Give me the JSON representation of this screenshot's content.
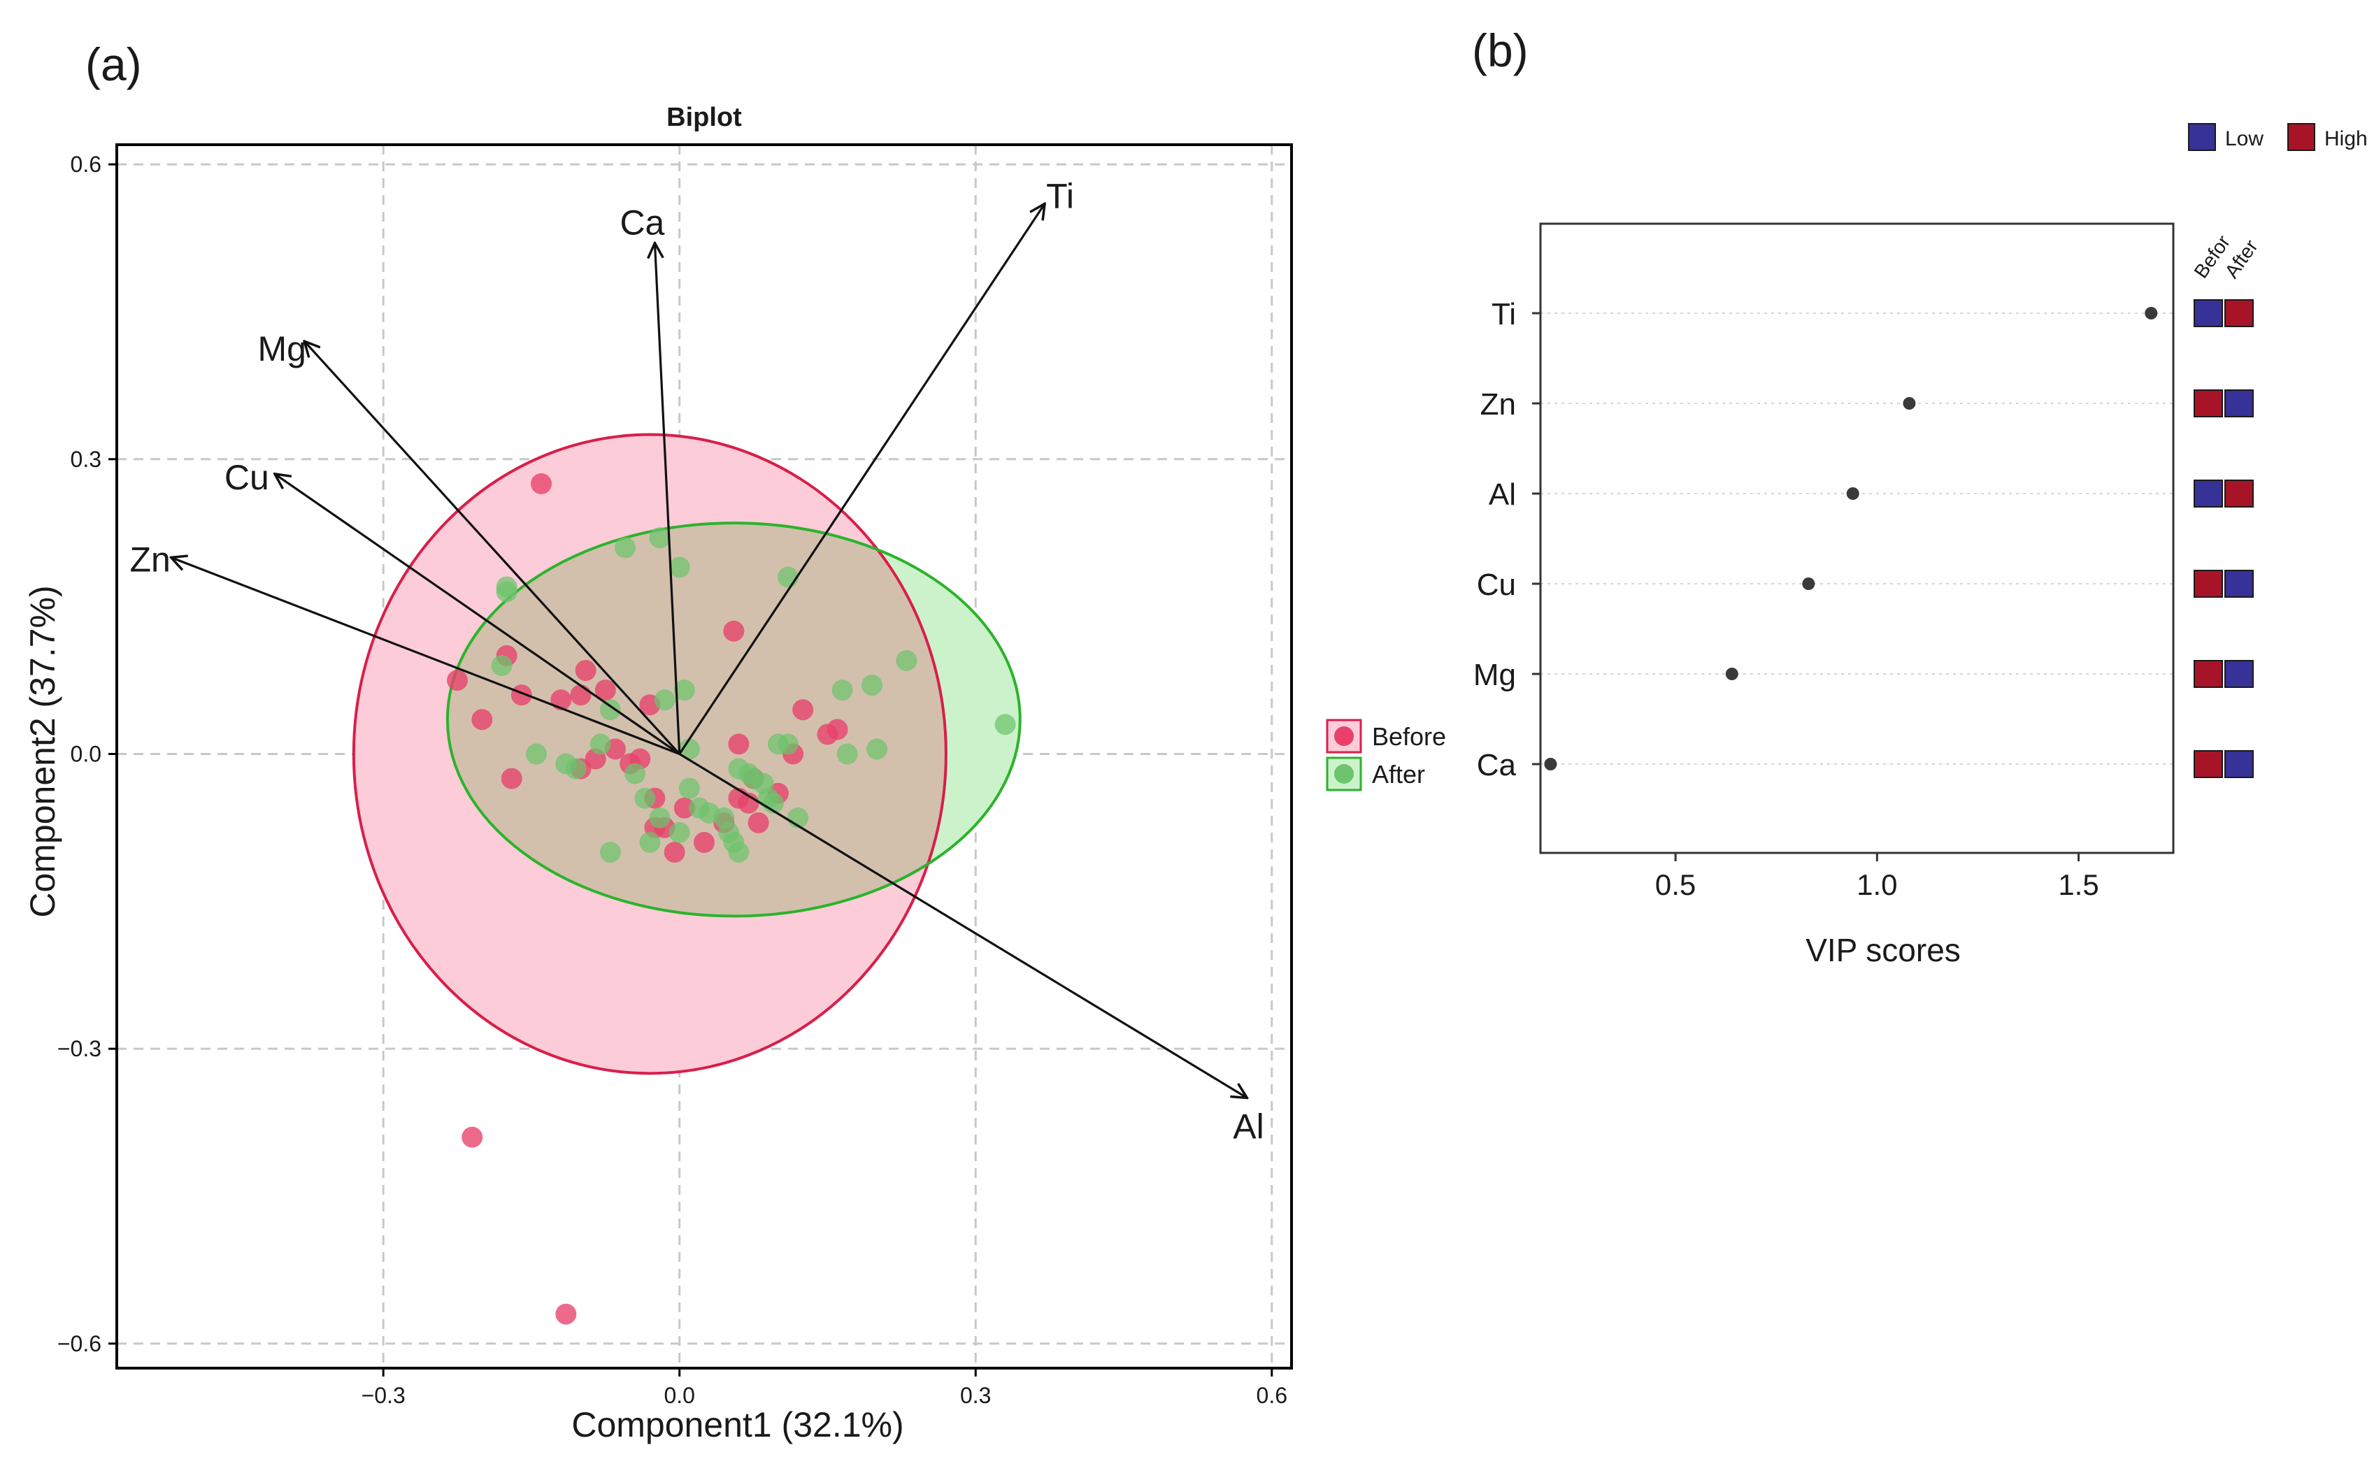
{
  "panel_a_label": "(a)",
  "panel_b_label": "(b)",
  "colors": {
    "before_point": "#e8406a",
    "before_ellipse_fill": "#fcccd8",
    "before_ellipse_stroke": "#d81f4a",
    "after_point": "#6cc46c",
    "after_ellipse_fill": "#ccf2cc",
    "after_ellipse_stroke": "#2cb32c",
    "overlap_fill": "#d2c0ad",
    "low": "#373297",
    "high": "#a81427",
    "vip_point": "#3a3a3a"
  },
  "chart_data": [
    {
      "type": "scatter",
      "subtype": "biplot",
      "title": "Biplot",
      "xlabel": "Component1 (32.1%)",
      "ylabel": "Component2 (37.7%)",
      "xlim": [
        -0.57,
        0.62
      ],
      "ylim": [
        -0.625,
        0.62
      ],
      "x_ticks": [
        -0.3,
        0.0,
        0.3,
        0.6
      ],
      "y_ticks": [
        0.6,
        0.3,
        0.0,
        -0.3,
        -0.6
      ],
      "x_tick_labels": [
        "−0.3",
        "0.0",
        "0.3",
        "0.6"
      ],
      "y_tick_labels": [
        "0.6",
        "0.3",
        "0.0",
        "−0.3",
        "−0.6"
      ],
      "grid": true,
      "legend_position": "right",
      "legend": [
        "Before",
        "After"
      ],
      "loadings": [
        {
          "name": "Ti",
          "x": 0.37,
          "y": 0.56
        },
        {
          "name": "Ca",
          "x": -0.025,
          "y": 0.52
        },
        {
          "name": "Mg",
          "x": -0.38,
          "y": 0.42
        },
        {
          "name": "Cu",
          "x": -0.41,
          "y": 0.285
        },
        {
          "name": "Zn",
          "x": -0.515,
          "y": 0.2
        },
        {
          "name": "Al",
          "x": 0.575,
          "y": -0.35
        }
      ],
      "ellipses": [
        {
          "series": "Before",
          "center": [
            -0.03,
            0.0
          ],
          "rx": 0.3,
          "ry": 0.325
        },
        {
          "series": "After",
          "center": [
            0.055,
            0.035
          ],
          "rx": 0.29,
          "ry": 0.2
        }
      ],
      "series": [
        {
          "name": "Before",
          "points": [
            [
              -0.14,
              0.275
            ],
            [
              -0.21,
              -0.39
            ],
            [
              -0.115,
              -0.57
            ],
            [
              -0.225,
              0.075
            ],
            [
              -0.2,
              0.035
            ],
            [
              -0.175,
              0.1
            ],
            [
              -0.16,
              0.06
            ],
            [
              -0.17,
              -0.025
            ],
            [
              -0.12,
              0.055
            ],
            [
              -0.1,
              0.06
            ],
            [
              -0.095,
              0.085
            ],
            [
              -0.075,
              0.065
            ],
            [
              -0.1,
              -0.015
            ],
            [
              -0.085,
              -0.005
            ],
            [
              -0.065,
              0.005
            ],
            [
              -0.05,
              -0.01
            ],
            [
              -0.04,
              -0.005
            ],
            [
              -0.03,
              0.05
            ],
            [
              -0.025,
              -0.045
            ],
            [
              -0.025,
              -0.075
            ],
            [
              -0.015,
              -0.075
            ],
            [
              -0.005,
              -0.1
            ],
            [
              0.005,
              -0.055
            ],
            [
              0.025,
              -0.09
            ],
            [
              0.045,
              -0.07
            ],
            [
              0.06,
              -0.045
            ],
            [
              0.06,
              0.01
            ],
            [
              0.055,
              0.125
            ],
            [
              0.07,
              -0.05
            ],
            [
              0.08,
              -0.07
            ],
            [
              0.075,
              -0.025
            ],
            [
              0.1,
              -0.04
            ],
            [
              0.115,
              0.0
            ],
            [
              0.125,
              0.045
            ],
            [
              0.16,
              0.025
            ],
            [
              0.15,
              0.02
            ]
          ]
        },
        {
          "name": "After",
          "points": [
            [
              -0.175,
              0.165
            ],
            [
              -0.175,
              0.17
            ],
            [
              -0.18,
              0.09
            ],
            [
              -0.055,
              0.21
            ],
            [
              -0.02,
              0.22
            ],
            [
              0.0,
              0.19
            ],
            [
              0.005,
              0.065
            ],
            [
              -0.015,
              0.055
            ],
            [
              -0.07,
              0.045
            ],
            [
              -0.145,
              0.0
            ],
            [
              -0.115,
              -0.01
            ],
            [
              -0.105,
              -0.015
            ],
            [
              -0.08,
              0.01
            ],
            [
              -0.07,
              -0.1
            ],
            [
              -0.045,
              -0.02
            ],
            [
              -0.035,
              -0.045
            ],
            [
              -0.03,
              -0.09
            ],
            [
              -0.02,
              -0.065
            ],
            [
              0.0,
              -0.08
            ],
            [
              0.01,
              0.005
            ],
            [
              0.01,
              -0.035
            ],
            [
              0.02,
              -0.055
            ],
            [
              0.03,
              -0.06
            ],
            [
              0.045,
              -0.065
            ],
            [
              0.05,
              -0.08
            ],
            [
              0.055,
              -0.09
            ],
            [
              0.06,
              -0.015
            ],
            [
              0.06,
              -0.1
            ],
            [
              0.07,
              -0.02
            ],
            [
              0.075,
              -0.025
            ],
            [
              0.085,
              -0.03
            ],
            [
              0.09,
              -0.045
            ],
            [
              0.095,
              -0.05
            ],
            [
              0.1,
              0.01
            ],
            [
              0.11,
              0.18
            ],
            [
              0.11,
              0.01
            ],
            [
              0.12,
              -0.065
            ],
            [
              0.165,
              0.065
            ],
            [
              0.17,
              0.0
            ],
            [
              0.195,
              0.07
            ],
            [
              0.2,
              0.005
            ],
            [
              0.23,
              0.095
            ],
            [
              0.33,
              0.03
            ]
          ]
        }
      ]
    },
    {
      "type": "scatter",
      "subtype": "dotplot",
      "xlabel": "VIP scores",
      "xlim": [
        0.165,
        1.735
      ],
      "x_ticks": [
        0.5,
        1.0,
        1.5
      ],
      "x_tick_labels": [
        "0.5",
        "1.0",
        "1.5"
      ],
      "categories": [
        "Ti",
        "Zn",
        "Al",
        "Cu",
        "Mg",
        "Ca"
      ],
      "values": [
        1.68,
        1.08,
        0.94,
        0.83,
        0.64,
        0.19
      ],
      "heatmap_columns": [
        "Befor",
        "After"
      ],
      "heatmap": [
        [
          "Low",
          "High"
        ],
        [
          "High",
          "Low"
        ],
        [
          "Low",
          "High"
        ],
        [
          "High",
          "Low"
        ],
        [
          "High",
          "Low"
        ],
        [
          "High",
          "Low"
        ]
      ],
      "legend": [
        "Low",
        "High"
      ],
      "legend_position": "top-right"
    }
  ]
}
